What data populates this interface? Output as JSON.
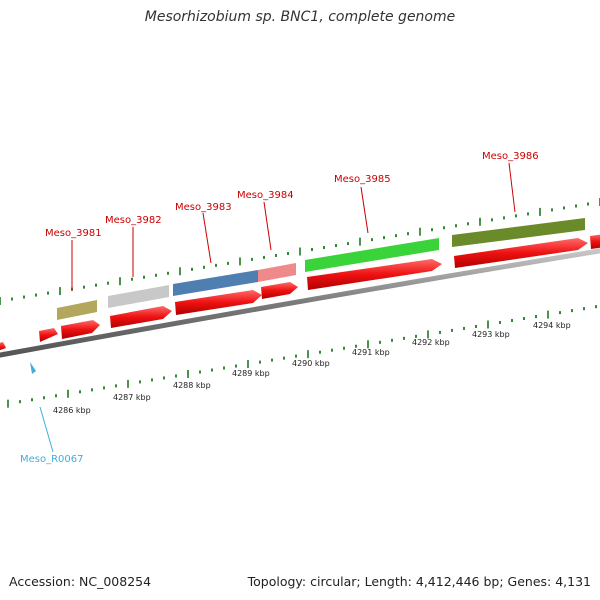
{
  "title": "Mesorhizobium sp. BNC1, complete genome",
  "accession": "Accession: NC_008254",
  "summary": "Topology: circular; Length: 4,412,446 bp; Genes: 4,131",
  "gene_labels": [
    {
      "id": "Meso_3981",
      "color": "#cc0000"
    },
    {
      "id": "Meso_3982",
      "color": "#cc0000"
    },
    {
      "id": "Meso_3983",
      "color": "#cc0000"
    },
    {
      "id": "Meso_3984",
      "color": "#cc0000"
    },
    {
      "id": "Meso_3985",
      "color": "#cc0000"
    },
    {
      "id": "Meso_3986",
      "color": "#cc0000"
    },
    {
      "id": "Meso_R0067",
      "color": "#3bb0dd"
    }
  ],
  "kbp_labels": [
    "4286 kbp",
    "4287 kbp",
    "4288 kbp",
    "4289 kbp",
    "4290 kbp",
    "4291 kbp",
    "4292 kbp",
    "4293 kbp",
    "4294 kbp"
  ],
  "colors": {
    "cds": "#e81010",
    "backbone": "#8a8a8a",
    "tick": "#1f7a1f",
    "trna": "#3bb0dd",
    "feature_olive": "#b3a75e",
    "feature_grey": "#c8c8c8",
    "feature_blue": "#4f7fb0",
    "feature_pink": "#f08a8a",
    "feature_green": "#3ad43a",
    "feature_darkolive": "#6b8a2a"
  }
}
